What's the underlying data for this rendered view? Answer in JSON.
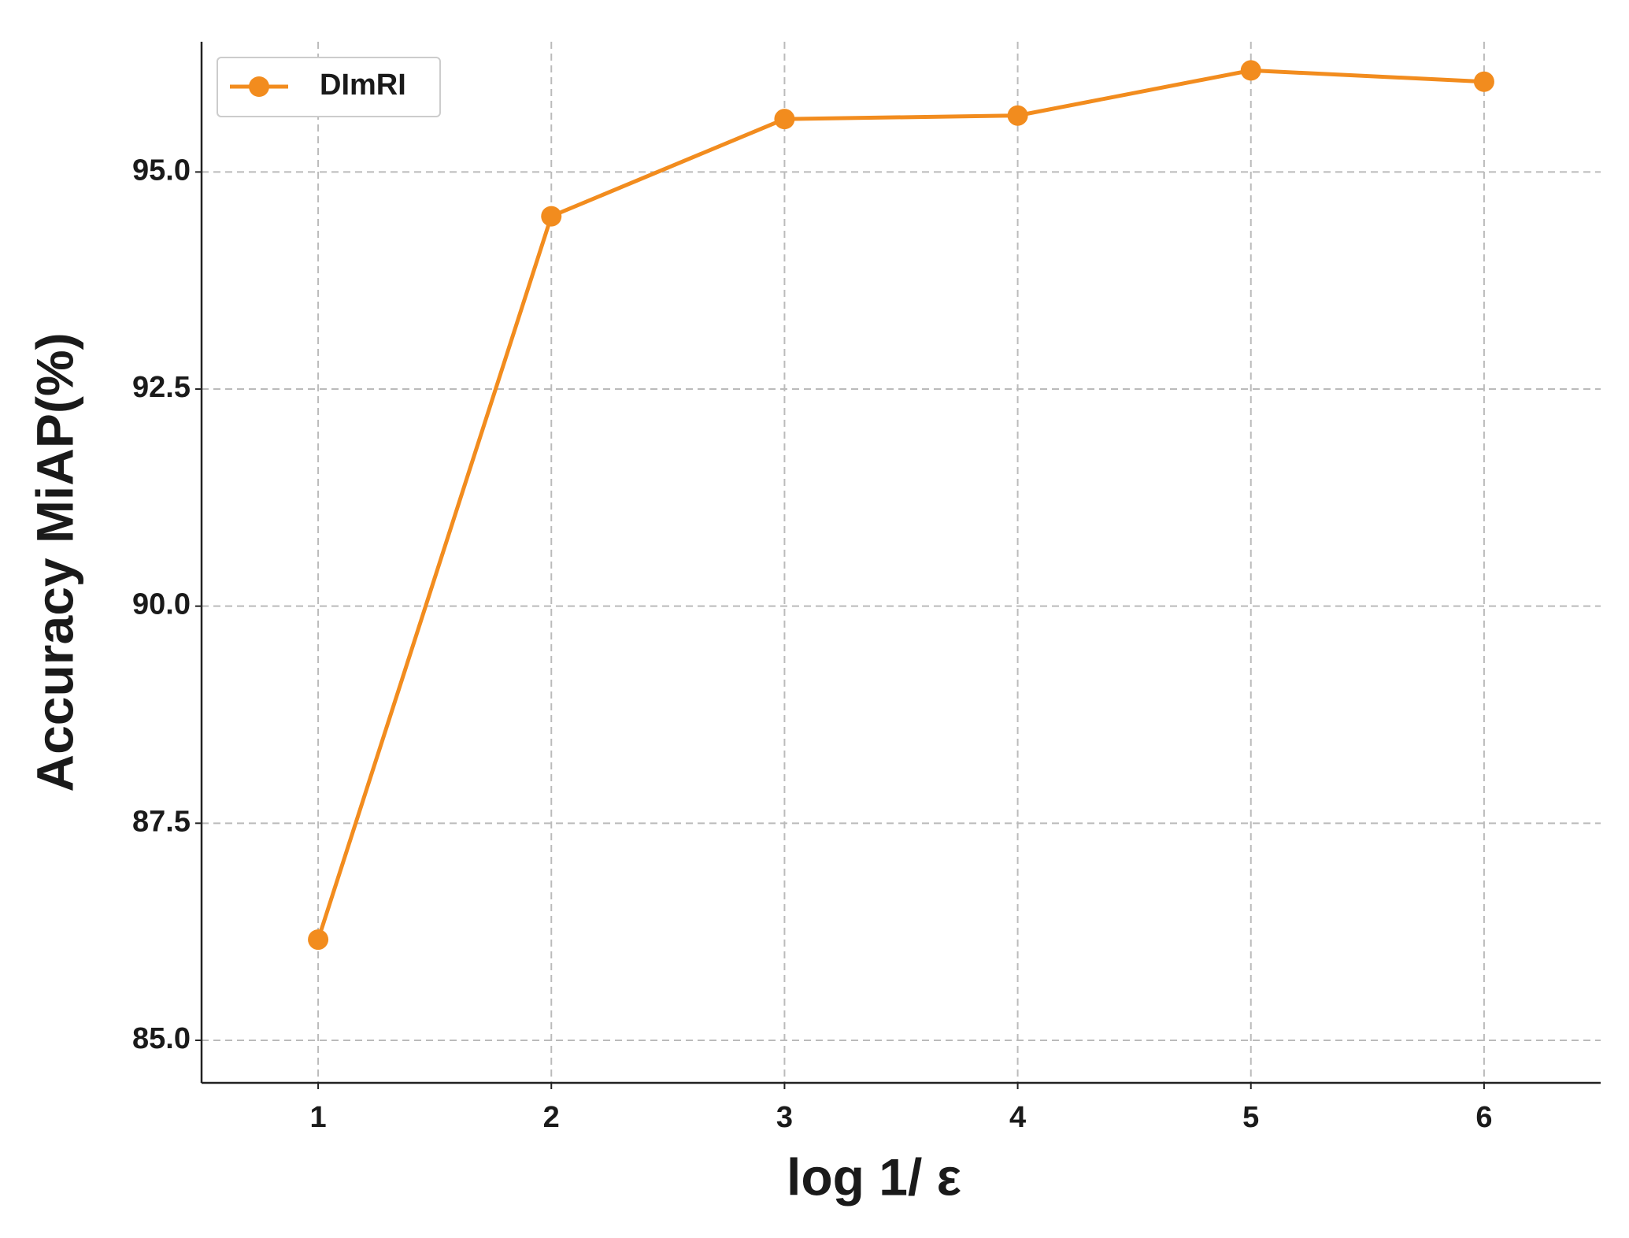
{
  "chart_data": {
    "type": "line",
    "xlabel": "log 1/ ε",
    "ylabel": "Accuracy MiAP(%)",
    "x": [
      1,
      2,
      3,
      4,
      5,
      6
    ],
    "series": [
      {
        "name": "DImRI",
        "color": "#f28c1e",
        "values": [
          86.16,
          94.49,
          95.61,
          95.65,
          96.17,
          96.04
        ]
      }
    ],
    "xlim": [
      0.5,
      6.5
    ],
    "xticks": [
      1,
      2,
      3,
      4,
      5,
      6
    ],
    "ylim": [
      84.51,
      96.5
    ],
    "yticks": [
      {
        "value": 85,
        "label": "85.0"
      },
      {
        "value": 87.5,
        "label": "87.5"
      },
      {
        "value": 90,
        "label": "90.0"
      },
      {
        "value": 92.5,
        "label": "92.5"
      },
      {
        "value": 95,
        "label": "95.0"
      }
    ],
    "grid": true,
    "legend": "upper left"
  }
}
